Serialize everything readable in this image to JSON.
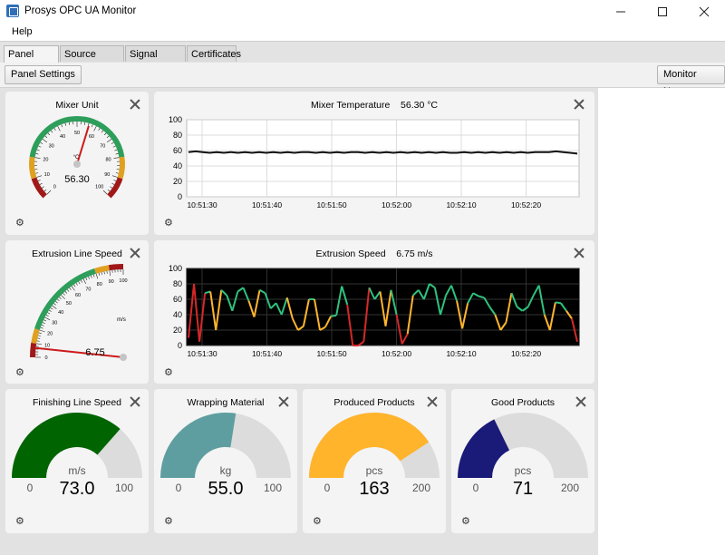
{
  "app": {
    "title": "Prosys OPC UA Monitor",
    "menu": [
      "Help"
    ]
  },
  "tabs": [
    "Panel Editor",
    "Source Servers",
    "Signal Groups",
    "Certificates"
  ],
  "toolbar": {
    "panel_settings": "Panel Settings",
    "monitor_now": "Monitor Now"
  },
  "panels": {
    "mixer_unit": {
      "title": "Mixer Unit",
      "unit": "°C",
      "value": "56.30",
      "numeric": 56.3,
      "ticks": [
        "0",
        "10",
        "20",
        "30",
        "40",
        "50",
        "60",
        "70",
        "80",
        "90",
        "100"
      ]
    },
    "mixer_temp": {
      "title": "Mixer Temperature",
      "value_text": "56.30 °C"
    },
    "extrusion_line": {
      "title": "Extrusion Line Speed",
      "unit": "m/s",
      "value": "6.75",
      "numeric": 6.75,
      "ticks": [
        "0",
        "10",
        "20",
        "30",
        "40",
        "50",
        "60",
        "70",
        "80",
        "90",
        "100"
      ]
    },
    "extrusion_speed": {
      "title": "Extrusion Speed",
      "value_text": "6.75 m/s"
    },
    "finishing": {
      "title": "Finishing Line Speed",
      "unit": "m/s",
      "value": "73.0",
      "min": "0",
      "max": "100",
      "numeric": 73,
      "max_numeric": 100,
      "color": "#006400"
    },
    "wrapping": {
      "title": "Wrapping Material",
      "unit": "kg",
      "value": "55.0",
      "min": "0",
      "max": "100",
      "numeric": 55,
      "max_numeric": 100,
      "color": "#5f9ea0"
    },
    "produced": {
      "title": "Produced Products",
      "unit": "pcs",
      "value": "163",
      "min": "0",
      "max": "200",
      "numeric": 163,
      "max_numeric": 200,
      "color": "#ffb42c"
    },
    "good": {
      "title": "Good Products",
      "unit": "pcs",
      "value": "71",
      "min": "0",
      "max": "200",
      "numeric": 71,
      "max_numeric": 200,
      "color": "#1a1a78"
    }
  },
  "chart_data": [
    {
      "type": "line",
      "title": "Mixer Temperature",
      "x_ticks": [
        "10:51:30",
        "10:51:40",
        "10:51:50",
        "10:52:00",
        "10:52:10",
        "10:52:20"
      ],
      "y_ticks": [
        "0",
        "20",
        "40",
        "60",
        "80",
        "100"
      ],
      "ylim": [
        0,
        100
      ],
      "background": "#ffffff",
      "series": [
        {
          "values": [
            58,
            59,
            58,
            57,
            58,
            57,
            58,
            57,
            58,
            57,
            58,
            57,
            58,
            57,
            58,
            57,
            58,
            58,
            57,
            58,
            57,
            58,
            57,
            58,
            58,
            57,
            58,
            57,
            58,
            57,
            58,
            57,
            58,
            57,
            58,
            57,
            58,
            57,
            57,
            58,
            57,
            58,
            57,
            58,
            57,
            58,
            57,
            58,
            57,
            58,
            58,
            58,
            59,
            58,
            57,
            56
          ]
        }
      ]
    },
    {
      "type": "line",
      "title": "Extrusion Speed",
      "x_ticks": [
        "10:51:30",
        "10:51:40",
        "10:51:50",
        "10:52:00",
        "10:52:10",
        "10:52:20"
      ],
      "y_ticks": [
        "0",
        "20",
        "40",
        "60",
        "80",
        "100"
      ],
      "ylim": [
        0,
        100
      ],
      "background": "#000000",
      "colors": {
        "high": "#2ec27e",
        "mid": "#ffb52e",
        "low": "#d62828"
      },
      "series": [
        {
          "values": [
            10,
            80,
            5,
            68,
            70,
            20,
            72,
            65,
            45,
            70,
            75,
            58,
            37,
            72,
            68,
            48,
            55,
            40,
            62,
            35,
            20,
            25,
            60,
            60,
            20,
            24,
            38,
            39,
            77,
            53,
            0,
            0,
            5,
            75,
            60,
            70,
            25,
            72,
            40,
            2,
            15,
            65,
            72,
            60,
            80,
            75,
            40,
            65,
            78,
            58,
            22,
            55,
            68,
            64,
            62,
            50,
            40,
            20,
            30,
            68,
            50,
            45,
            50,
            65,
            78,
            40,
            20,
            56,
            55,
            45,
            35,
            5
          ]
        }
      ]
    }
  ]
}
